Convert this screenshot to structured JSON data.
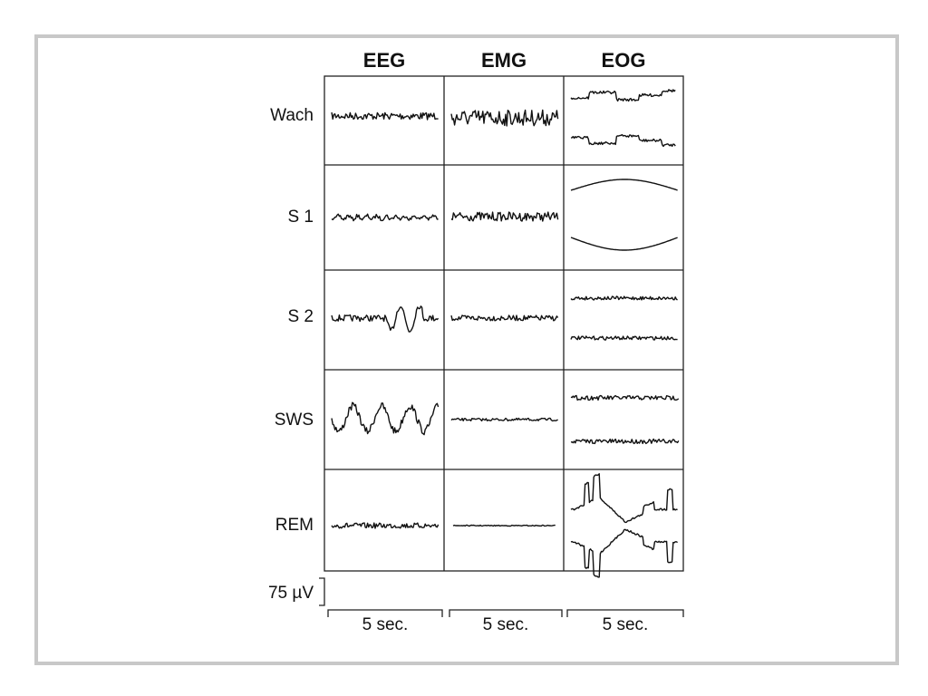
{
  "header": {
    "columns": [
      "EEG",
      "EMG",
      "EOG"
    ]
  },
  "rows": [
    "Wach",
    "S 1",
    "S 2",
    "SWS",
    "REM"
  ],
  "scale": {
    "amplitude": "75 µV",
    "time": [
      "5 sec.",
      "5 sec.",
      "5 sec."
    ]
  }
}
